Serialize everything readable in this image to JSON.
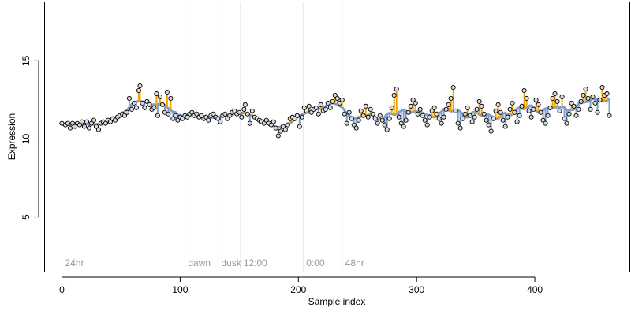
{
  "chart_data": {
    "type": "scatter",
    "title": "",
    "xlabel": "Sample index",
    "ylabel": "Expression",
    "xlim": [
      -15,
      480
    ],
    "ylim": [
      1.5,
      18.8
    ],
    "xticks": [
      "0",
      "100",
      "200",
      "300",
      "400"
    ],
    "xtick_values": [
      0,
      100,
      200,
      300,
      400
    ],
    "yticks": [
      "5",
      "10",
      "15"
    ],
    "ytick_values": [
      5,
      10,
      15
    ],
    "grid": false,
    "phase_markers": [
      {
        "label": "24hr",
        "x": 0
      },
      {
        "label": "dawn",
        "x": 104
      },
      {
        "label": "dusk",
        "x": 132
      },
      {
        "label": "12:00",
        "x": 151
      },
      {
        "label": "0:00",
        "x": 204
      },
      {
        "label": "48hr",
        "x": 237
      }
    ],
    "phase_lines_x": [
      104,
      132,
      151,
      204,
      237
    ],
    "colors": {
      "fitted_line": "#7e9fd0",
      "residual_up": "#f5a300",
      "residual_down": "#7e9fd0",
      "point_fill": "#d9d9d9",
      "point_edge": "#000000",
      "phase_line": "#e5e5e5",
      "phase_label": "#9a9a9a"
    },
    "series": [
      {
        "name": "",
        "points": [
          [
            0,
            11.0
          ],
          [
            3,
            10.9
          ],
          [
            5,
            11.0
          ],
          [
            7,
            10.7
          ],
          [
            9,
            11.0
          ],
          [
            11,
            10.8
          ],
          [
            13,
            11.0
          ],
          [
            15,
            10.9
          ],
          [
            17,
            11.1
          ],
          [
            19,
            10.8
          ],
          [
            21,
            11.1
          ],
          [
            23,
            10.7
          ],
          [
            25,
            11.0
          ],
          [
            27,
            11.2
          ],
          [
            29,
            10.8
          ],
          [
            31,
            10.6
          ],
          [
            33,
            11.0
          ],
          [
            35,
            11.1
          ],
          [
            37,
            11.0
          ],
          [
            39,
            11.2
          ],
          [
            41,
            11.1
          ],
          [
            43,
            11.3
          ],
          [
            45,
            11.2
          ],
          [
            47,
            11.4
          ],
          [
            49,
            11.5
          ],
          [
            51,
            11.6
          ],
          [
            53,
            11.5
          ],
          [
            55,
            11.7
          ],
          [
            57,
            12.6
          ],
          [
            59,
            11.9
          ],
          [
            61,
            12.3
          ],
          [
            63,
            12.0
          ],
          [
            65,
            13.1
          ],
          [
            66,
            13.4
          ],
          [
            68,
            12.3
          ],
          [
            70,
            12.0
          ],
          [
            72,
            12.4
          ],
          [
            74,
            12.2
          ],
          [
            76,
            11.9
          ],
          [
            78,
            12.0
          ],
          [
            80,
            12.9
          ],
          [
            81,
            11.5
          ],
          [
            83,
            12.7
          ],
          [
            85,
            12.2
          ],
          [
            87,
            11.7
          ],
          [
            89,
            13.0
          ],
          [
            90,
            11.6
          ],
          [
            92,
            12.6
          ],
          [
            94,
            11.3
          ],
          [
            96,
            11.5
          ],
          [
            98,
            11.2
          ],
          [
            100,
            11.4
          ],
          [
            102,
            11.3
          ],
          [
            104,
            11.5
          ],
          [
            106,
            11.4
          ],
          [
            108,
            11.6
          ],
          [
            110,
            11.7
          ],
          [
            112,
            11.5
          ],
          [
            114,
            11.6
          ],
          [
            116,
            11.4
          ],
          [
            118,
            11.5
          ],
          [
            120,
            11.3
          ],
          [
            122,
            11.4
          ],
          [
            124,
            11.2
          ],
          [
            126,
            11.5
          ],
          [
            128,
            11.6
          ],
          [
            130,
            11.4
          ],
          [
            132,
            11.3
          ],
          [
            134,
            11.1
          ],
          [
            136,
            11.5
          ],
          [
            138,
            11.6
          ],
          [
            140,
            11.3
          ],
          [
            142,
            11.5
          ],
          [
            144,
            11.7
          ],
          [
            146,
            11.8
          ],
          [
            148,
            11.6
          ],
          [
            150,
            11.7
          ],
          [
            152,
            11.4
          ],
          [
            154,
            11.9
          ],
          [
            155,
            12.2
          ],
          [
            157,
            11.6
          ],
          [
            159,
            11.0
          ],
          [
            161,
            11.8
          ],
          [
            163,
            11.4
          ],
          [
            165,
            11.3
          ],
          [
            167,
            11.2
          ],
          [
            169,
            11.1
          ],
          [
            171,
            11.0
          ],
          [
            173,
            11.2
          ],
          [
            175,
            11.0
          ],
          [
            177,
            10.9
          ],
          [
            179,
            11.1
          ],
          [
            181,
            10.7
          ],
          [
            183,
            10.2
          ],
          [
            185,
            10.5
          ],
          [
            187,
            10.8
          ],
          [
            189,
            10.6
          ],
          [
            191,
            10.9
          ],
          [
            193,
            11.3
          ],
          [
            195,
            11.4
          ],
          [
            197,
            11.3
          ],
          [
            199,
            11.5
          ],
          [
            201,
            10.8
          ],
          [
            203,
            11.4
          ],
          [
            205,
            12.0
          ],
          [
            207,
            11.8
          ],
          [
            209,
            12.1
          ],
          [
            211,
            11.7
          ],
          [
            213,
            11.9
          ],
          [
            215,
            12.0
          ],
          [
            217,
            11.6
          ],
          [
            219,
            12.2
          ],
          [
            221,
            11.8
          ],
          [
            223,
            11.9
          ],
          [
            225,
            12.3
          ],
          [
            227,
            12.0
          ],
          [
            229,
            12.4
          ],
          [
            231,
            12.8
          ],
          [
            233,
            12.6
          ],
          [
            235,
            12.3
          ],
          [
            237,
            12.5
          ],
          [
            239,
            11.6
          ],
          [
            241,
            11.0
          ],
          [
            243,
            11.7
          ],
          [
            245,
            11.3
          ],
          [
            247,
            10.9
          ],
          [
            249,
            10.7
          ],
          [
            251,
            11.2
          ],
          [
            253,
            11.8
          ],
          [
            255,
            11.5
          ],
          [
            257,
            12.1
          ],
          [
            259,
            11.4
          ],
          [
            261,
            11.9
          ],
          [
            263,
            11.6
          ],
          [
            265,
            11.3
          ],
          [
            267,
            11.0
          ],
          [
            269,
            11.5
          ],
          [
            271,
            11.2
          ],
          [
            273,
            10.9
          ],
          [
            275,
            10.6
          ],
          [
            277,
            11.3
          ],
          [
            279,
            12.0
          ],
          [
            281,
            12.8
          ],
          [
            283,
            13.2
          ],
          [
            285,
            11.4
          ],
          [
            287,
            11.0
          ],
          [
            289,
            10.8
          ],
          [
            291,
            11.2
          ],
          [
            293,
            11.7
          ],
          [
            295,
            12.1
          ],
          [
            297,
            12.5
          ],
          [
            299,
            12.3
          ],
          [
            301,
            11.6
          ],
          [
            303,
            11.9
          ],
          [
            305,
            11.5
          ],
          [
            307,
            11.2
          ],
          [
            309,
            10.9
          ],
          [
            311,
            11.4
          ],
          [
            313,
            11.8
          ],
          [
            315,
            12.0
          ],
          [
            317,
            11.6
          ],
          [
            319,
            11.3
          ],
          [
            321,
            11.0
          ],
          [
            323,
            11.4
          ],
          [
            325,
            11.9
          ],
          [
            327,
            12.2
          ],
          [
            329,
            12.6
          ],
          [
            331,
            13.3
          ],
          [
            333,
            11.8
          ],
          [
            335,
            11.0
          ],
          [
            337,
            10.7
          ],
          [
            339,
            11.3
          ],
          [
            341,
            11.6
          ],
          [
            343,
            12.0
          ],
          [
            345,
            11.5
          ],
          [
            347,
            11.1
          ],
          [
            349,
            11.4
          ],
          [
            351,
            11.9
          ],
          [
            353,
            12.4
          ],
          [
            355,
            12.1
          ],
          [
            357,
            11.6
          ],
          [
            359,
            11.2
          ],
          [
            361,
            10.9
          ],
          [
            363,
            10.5
          ],
          [
            365,
            11.3
          ],
          [
            367,
            11.8
          ],
          [
            369,
            12.2
          ],
          [
            371,
            11.7
          ],
          [
            373,
            11.2
          ],
          [
            375,
            10.8
          ],
          [
            377,
            11.4
          ],
          [
            379,
            11.9
          ],
          [
            381,
            12.3
          ],
          [
            383,
            11.7
          ],
          [
            385,
            11.1
          ],
          [
            387,
            11.5
          ],
          [
            389,
            12.1
          ],
          [
            391,
            13.1
          ],
          [
            393,
            12.6
          ],
          [
            395,
            11.8
          ],
          [
            397,
            11.4
          ],
          [
            399,
            11.9
          ],
          [
            401,
            12.5
          ],
          [
            403,
            12.2
          ],
          [
            405,
            11.7
          ],
          [
            407,
            11.2
          ],
          [
            409,
            11.0
          ],
          [
            411,
            11.5
          ],
          [
            413,
            12.0
          ],
          [
            415,
            12.6
          ],
          [
            417,
            12.9
          ],
          [
            419,
            12.4
          ],
          [
            421,
            11.8
          ],
          [
            423,
            12.7
          ],
          [
            425,
            11.3
          ],
          [
            427,
            11.0
          ],
          [
            429,
            11.6
          ],
          [
            431,
            12.3
          ],
          [
            433,
            12.1
          ],
          [
            435,
            11.5
          ],
          [
            437,
            11.9
          ],
          [
            439,
            12.4
          ],
          [
            441,
            12.8
          ],
          [
            443,
            13.2
          ],
          [
            445,
            12.6
          ],
          [
            447,
            11.9
          ],
          [
            449,
            12.7
          ],
          [
            451,
            12.3
          ],
          [
            453,
            11.7
          ],
          [
            455,
            12.5
          ],
          [
            457,
            13.3
          ],
          [
            459,
            12.8
          ],
          [
            461,
            12.9
          ],
          [
            463,
            11.5
          ]
        ]
      }
    ]
  }
}
